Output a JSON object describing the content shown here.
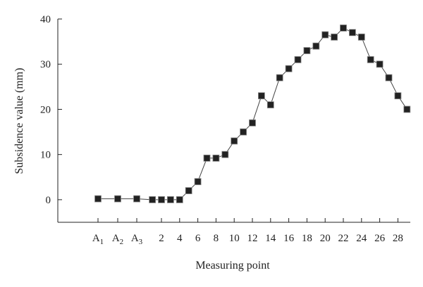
{
  "chart_data": {
    "type": "line",
    "xlabel": "Measuring point",
    "ylabel": "Subsidence value (mm)",
    "ylim": [
      -5,
      40
    ],
    "y_ticks": [
      0,
      10,
      20,
      30,
      40
    ],
    "x_tick_labels": [
      {
        "main": "A",
        "sub": "1"
      },
      {
        "main": "A",
        "sub": "2"
      },
      {
        "main": "A",
        "sub": "3"
      },
      {
        "main": "2",
        "sub": ""
      },
      {
        "main": "4",
        "sub": ""
      },
      {
        "main": "6",
        "sub": ""
      },
      {
        "main": "8",
        "sub": ""
      },
      {
        "main": "10",
        "sub": ""
      },
      {
        "main": "12",
        "sub": ""
      },
      {
        "main": "14",
        "sub": ""
      },
      {
        "main": "16",
        "sub": ""
      },
      {
        "main": "18",
        "sub": ""
      },
      {
        "main": "20",
        "sub": ""
      },
      {
        "main": "22",
        "sub": ""
      },
      {
        "main": "24",
        "sub": ""
      },
      {
        "main": "26",
        "sub": ""
      },
      {
        "main": "28",
        "sub": ""
      }
    ],
    "series": [
      {
        "points": [
          {
            "x": "A1",
            "y": 0.2
          },
          {
            "x": "A2",
            "y": 0.2
          },
          {
            "x": "A3",
            "y": 0.2
          },
          {
            "x": 1,
            "y": 0
          },
          {
            "x": 2,
            "y": 0
          },
          {
            "x": 3,
            "y": 0
          },
          {
            "x": 4,
            "y": 0
          },
          {
            "x": 5,
            "y": 2
          },
          {
            "x": 6,
            "y": 4
          },
          {
            "x": 7,
            "y": 9.2
          },
          {
            "x": 8,
            "y": 9.2
          },
          {
            "x": 9,
            "y": 10
          },
          {
            "x": 10,
            "y": 13
          },
          {
            "x": 11,
            "y": 15
          },
          {
            "x": 12,
            "y": 17
          },
          {
            "x": 13,
            "y": 23
          },
          {
            "x": 14,
            "y": 21
          },
          {
            "x": 15,
            "y": 27
          },
          {
            "x": 16,
            "y": 29
          },
          {
            "x": 17,
            "y": 31
          },
          {
            "x": 18,
            "y": 33
          },
          {
            "x": 19,
            "y": 34
          },
          {
            "x": 20,
            "y": 36.5
          },
          {
            "x": 21,
            "y": 36
          },
          {
            "x": 22,
            "y": 38
          },
          {
            "x": 23,
            "y": 37
          },
          {
            "x": 24,
            "y": 36
          },
          {
            "x": 25,
            "y": 31
          },
          {
            "x": 26,
            "y": 30
          },
          {
            "x": 27,
            "y": 27
          },
          {
            "x": 28,
            "y": 23
          },
          {
            "x": 29,
            "y": 20
          }
        ]
      }
    ],
    "grid": false,
    "colors": {
      "marker": "#222222",
      "line": "#444444",
      "axis": "#222222"
    }
  }
}
